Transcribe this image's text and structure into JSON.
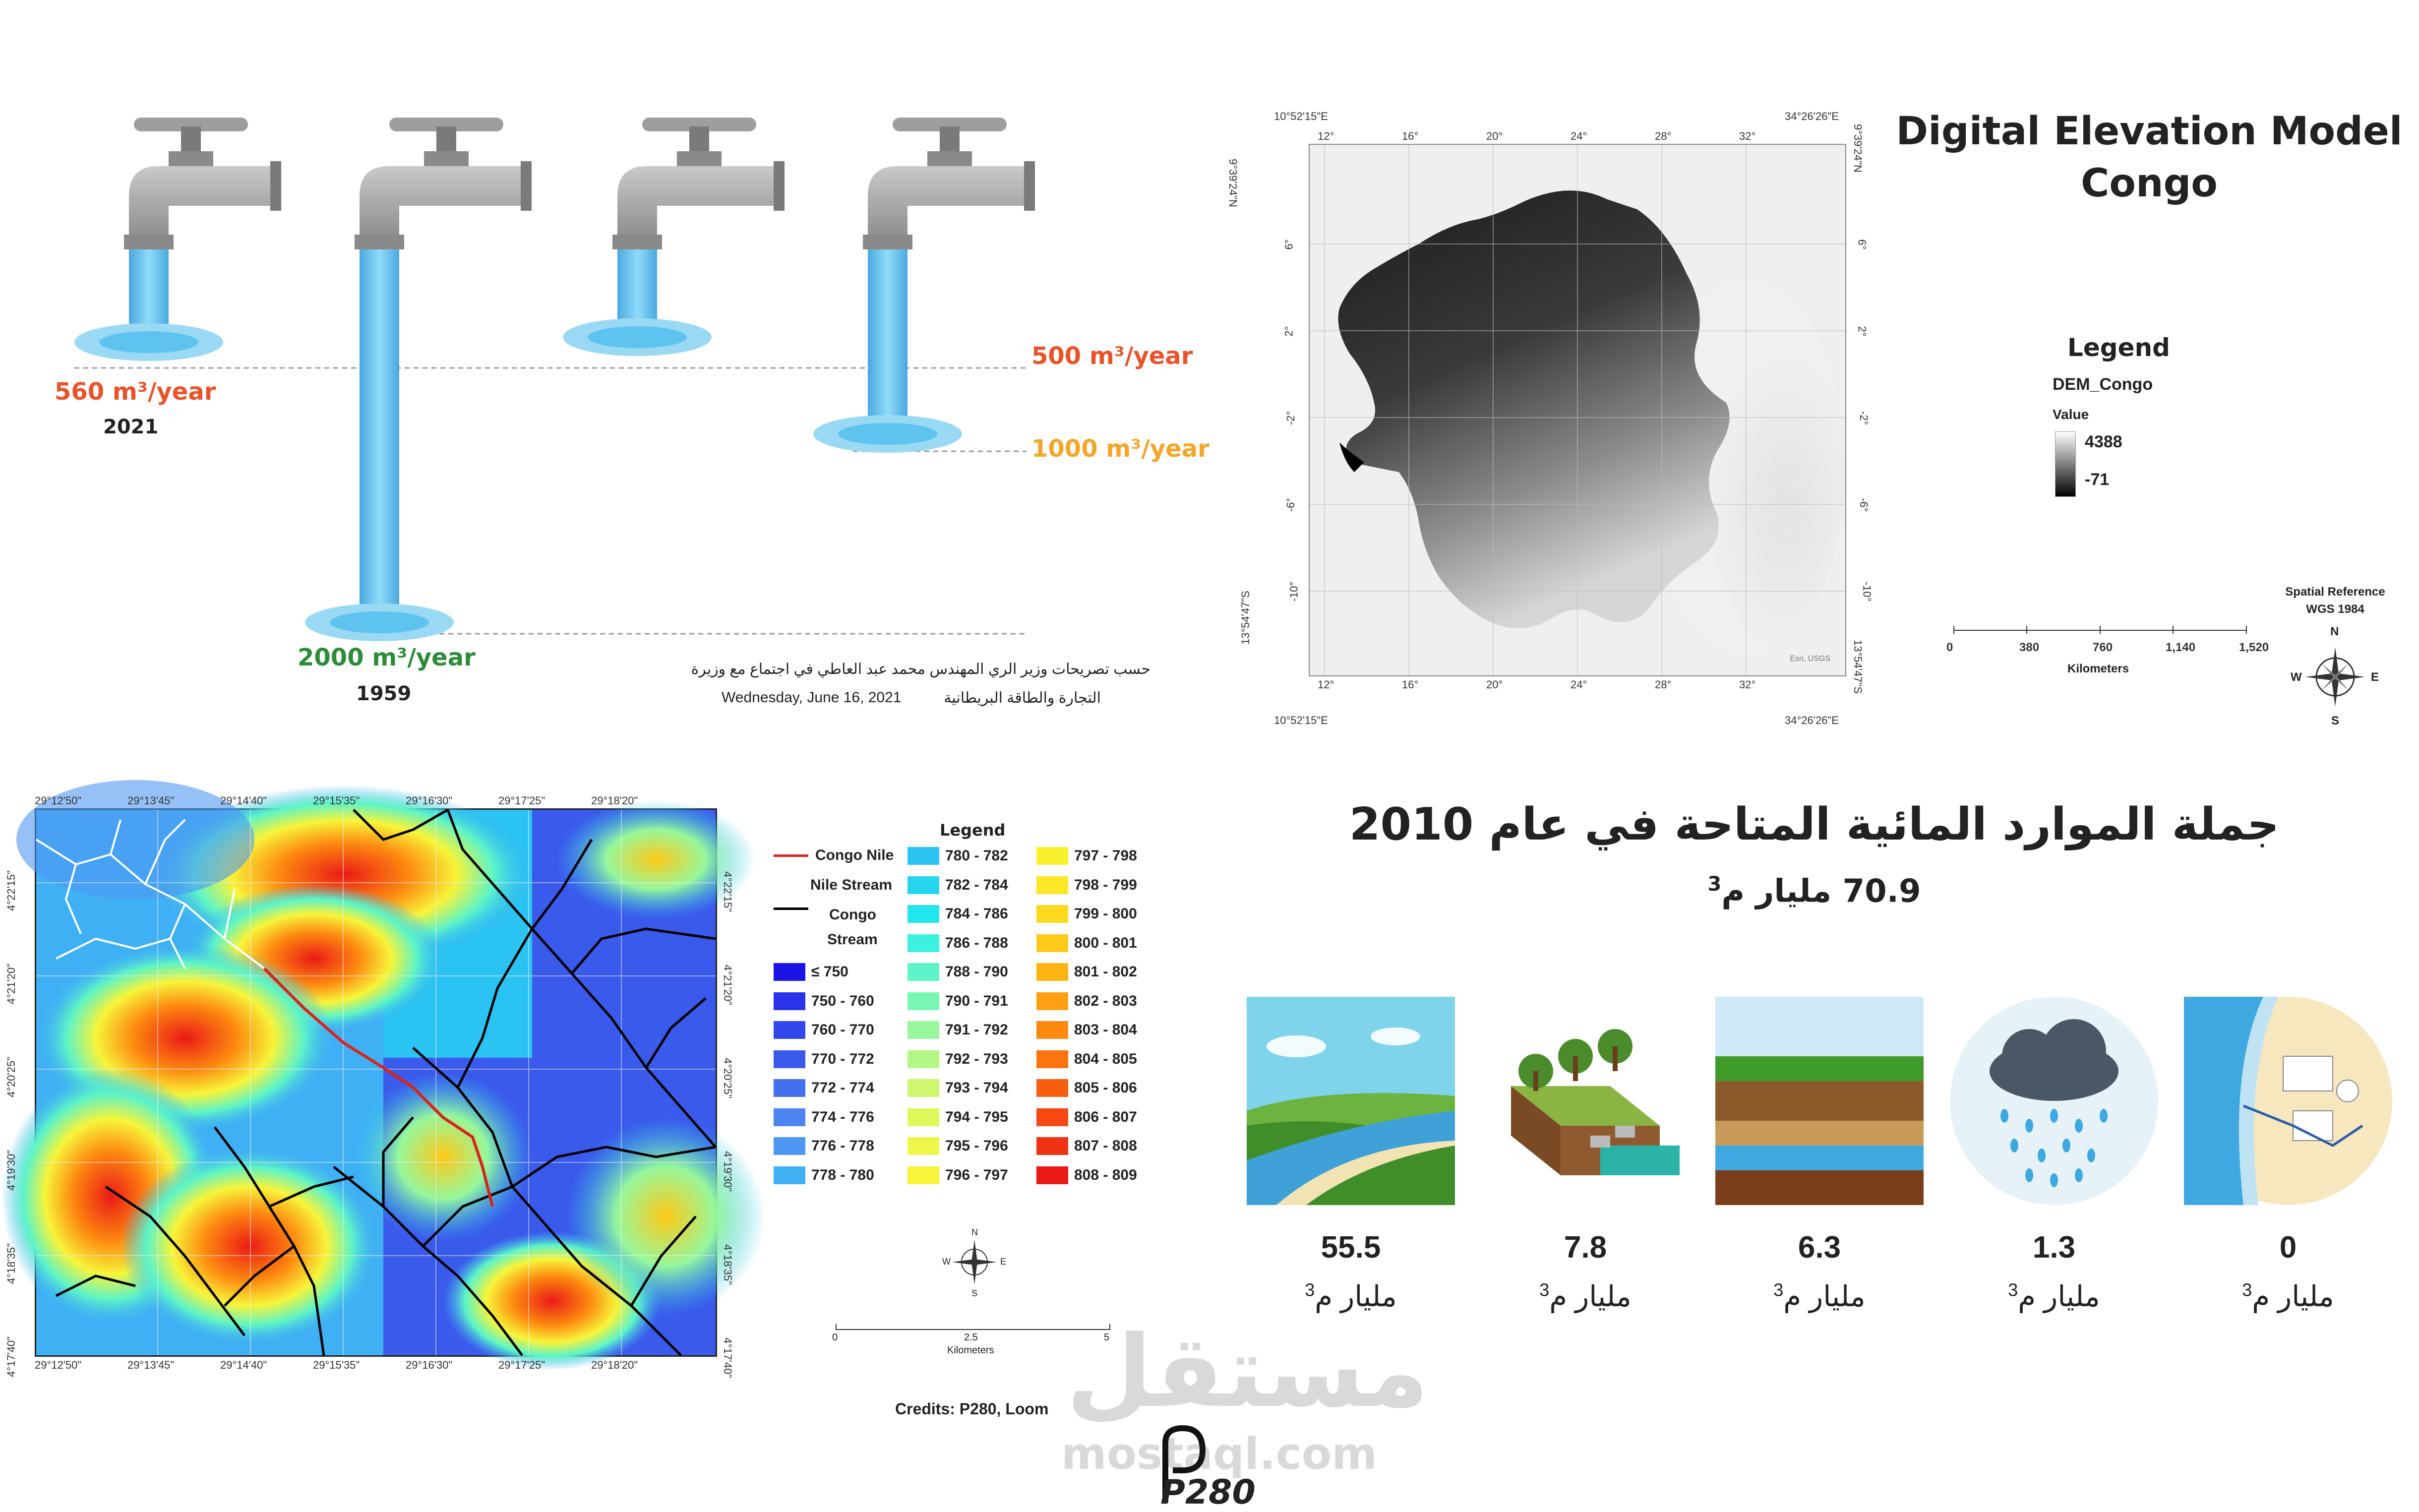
{
  "taps": {
    "year_2021": "2021",
    "val_2021": "560 m³/year",
    "year_1959": "1959",
    "val_1959": "2000 m³/year",
    "val_500": "500 m³/year",
    "val_1000": "1000 m³/year",
    "source_line1": "حسب تصريحات وزير الري المهندس محمد عبد العاطي في اجتماع مع وزيرة",
    "source_line2": "التجارة والطاقة البريطانية",
    "source_date": "Wednesday, June 16, 2021",
    "colors": {
      "red": "#e8532a",
      "green": "#2e8b3a",
      "orange": "#f4a62a",
      "water": "#5ec3ef"
    }
  },
  "dem": {
    "title_line1": "Digital Elevation Model",
    "title_line2": "Congo",
    "legend_title": "Legend",
    "layer_name": "DEM_Congo",
    "value_label": "Value",
    "max": "4388",
    "min": "-71",
    "spatial_ref_line1": "Spatial Reference",
    "spatial_ref_line2": "WGS 1984",
    "scale_ticks": [
      "0",
      "380",
      "760",
      "1,140",
      "1,520"
    ],
    "scale_unit": "Kilometers",
    "compass": {
      "n": "N",
      "s": "S",
      "e": "E",
      "w": "W"
    },
    "top_left": "10°52'15\"E",
    "top_right": "34°26'26\"E",
    "bottom_left": "10°52'15\"E",
    "bottom_right": "34°26'26\"E",
    "left_top": "9°39'24\"N",
    "left_bottom": "13°54'47\"S",
    "right_top": "9°39'24\"N",
    "right_bottom": "13°54'47\"S",
    "lon_ticks": [
      "12°",
      "16°",
      "20°",
      "24°",
      "28°",
      "32°"
    ],
    "lat_ticks": [
      "6°",
      "2°",
      "-2°",
      "-6°",
      "-10°"
    ],
    "credit": "Esri, USGS"
  },
  "stream": {
    "top_coords": [
      "29°12'50\"",
      "29°13'45\"",
      "29°14'40\"",
      "29°15'35\"",
      "29°16'30\"",
      "29°17'25\"",
      "29°18'20\""
    ],
    "side_coords": [
      "4°22'15\"",
      "4°21'20\"",
      "4°20'25\"",
      "4°19'30\"",
      "4°18'35\"",
      "4°17'40\""
    ],
    "legend_title": "Legend",
    "congo_nile": "Congo Nile",
    "nile_stream": "Nile Stream",
    "congo_stream_1": "Congo",
    "congo_stream_2": "Stream",
    "classes_col1": [
      {
        "label": "≤ 750",
        "color": "#1a14e6"
      },
      {
        "label": "750 - 760",
        "color": "#2a33e8"
      },
      {
        "label": "760 - 770",
        "color": "#3148ea"
      },
      {
        "label": "770 - 772",
        "color": "#3a5aeb"
      },
      {
        "label": "772 - 774",
        "color": "#4470ee"
      },
      {
        "label": "774 - 776",
        "color": "#4d84f0"
      },
      {
        "label": "776 - 778",
        "color": "#4e97f2"
      },
      {
        "label": "778 - 780",
        "color": "#3fb0f4"
      }
    ],
    "classes_col2": [
      {
        "label": "780 - 782",
        "color": "#2bc3f2"
      },
      {
        "label": "782 - 784",
        "color": "#27d4f0"
      },
      {
        "label": "784 - 786",
        "color": "#22e6ee"
      },
      {
        "label": "786 - 788",
        "color": "#3ef0e0"
      },
      {
        "label": "788 - 790",
        "color": "#5cf4c8"
      },
      {
        "label": "790 - 791",
        "color": "#79f6b3"
      },
      {
        "label": "791 - 792",
        "color": "#96f79c"
      },
      {
        "label": "792 - 793",
        "color": "#b3f785"
      },
      {
        "label": "793 - 794",
        "color": "#ccf76e"
      },
      {
        "label": "794 - 795",
        "color": "#e0f75a"
      },
      {
        "label": "795 - 796",
        "color": "#eef64a"
      },
      {
        "label": "796 - 797",
        "color": "#f7f43a"
      }
    ],
    "classes_col3": [
      {
        "label": "797 - 798",
        "color": "#fbf02e"
      },
      {
        "label": "798 - 799",
        "color": "#fde625"
      },
      {
        "label": "799 - 800",
        "color": "#fed91e"
      },
      {
        "label": "800 - 801",
        "color": "#fec918"
      },
      {
        "label": "801 - 802",
        "color": "#feb514"
      },
      {
        "label": "802 - 803",
        "color": "#fea012"
      },
      {
        "label": "803 - 804",
        "color": "#fd8a10"
      },
      {
        "label": "804 - 805",
        "color": "#fb740f"
      },
      {
        "label": "805 - 806",
        "color": "#f95e10"
      },
      {
        "label": "806 - 807",
        "color": "#f54812"
      },
      {
        "label": "807 - 808",
        "color": "#f03214"
      },
      {
        "label": "808 - 809",
        "color": "#ea1a16"
      }
    ],
    "scale_ticks": [
      "0",
      "2.5",
      "5"
    ],
    "scale_unit": "Kilometers",
    "compass": {
      "n": "N",
      "s": "S",
      "e": "E",
      "w": "W"
    },
    "credits": "Credits: P280, Loom",
    "logo": "P280"
  },
  "resources": {
    "title": "جملة الموارد المائية المتاحة في عام 2010",
    "total": "70.9 مليار م",
    "total_sup": "3",
    "unit": "مليار م",
    "unit_sup": "3",
    "items": [
      {
        "value": "55.5",
        "icon": "nile-river-icon"
      },
      {
        "value": "7.8",
        "icon": "drainage-reuse-icon"
      },
      {
        "value": "6.3",
        "icon": "groundwater-icon"
      },
      {
        "value": "1.3",
        "icon": "rain-cloud-icon"
      },
      {
        "value": "0",
        "icon": "desalination-icon"
      }
    ]
  },
  "watermark": {
    "arabic": "مستقل",
    "latin": "mostaql.com"
  }
}
